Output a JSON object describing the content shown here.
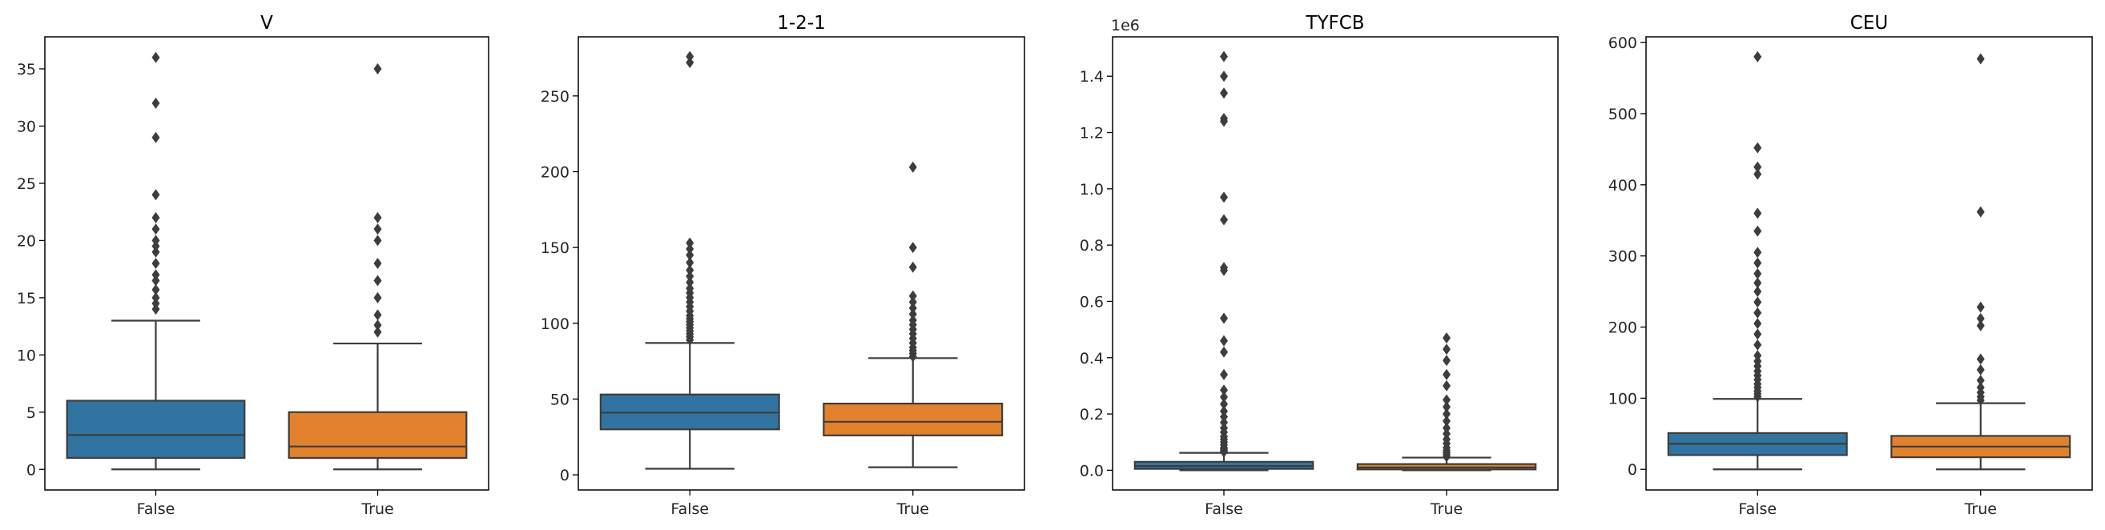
{
  "colors": {
    "false": "#3274a1",
    "true": "#e1812c",
    "line": "#3d3d3d"
  },
  "chart_data": [
    {
      "type": "box",
      "title": "V",
      "categories": [
        "False",
        "True"
      ],
      "ylim": [
        -1.8,
        37.8
      ],
      "yticks": [
        0,
        5,
        10,
        15,
        20,
        25,
        30,
        35
      ],
      "ytick_labels": [
        "0",
        "5",
        "10",
        "15",
        "20",
        "25",
        "30",
        "35"
      ],
      "offset_label": "",
      "boxes": [
        {
          "min": 0,
          "q1": 1,
          "median": 3,
          "q3": 6,
          "max": 13,
          "outliers": [
            14,
            14.5,
            15,
            15.7,
            16.5,
            17,
            18,
            19,
            19.5,
            20,
            21,
            22,
            24,
            29,
            32,
            36
          ]
        },
        {
          "min": 0,
          "q1": 1,
          "median": 2,
          "q3": 5,
          "max": 11,
          "outliers": [
            12,
            12.6,
            13.5,
            15,
            16.5,
            18,
            20,
            21,
            22,
            35
          ]
        }
      ]
    },
    {
      "type": "box",
      "title": "1-2-1",
      "categories": [
        "False",
        "True"
      ],
      "ylim": [
        -10,
        289
      ],
      "yticks": [
        0,
        50,
        100,
        150,
        200,
        250
      ],
      "ytick_labels": [
        "0",
        "50",
        "100",
        "150",
        "200",
        "250"
      ],
      "offset_label": "",
      "boxes": [
        {
          "min": 4,
          "q1": 30,
          "median": 41,
          "q3": 53,
          "max": 87,
          "outliers": [
            89,
            91,
            93,
            95,
            97,
            99,
            101,
            103,
            105,
            108,
            111,
            114,
            117,
            120,
            123,
            127,
            131,
            135,
            140,
            145,
            149,
            153,
            272,
            276
          ]
        },
        {
          "min": 5,
          "q1": 26,
          "median": 35,
          "q3": 47,
          "max": 77,
          "outliers": [
            78,
            80,
            82,
            84,
            87,
            90,
            93,
            96,
            99,
            102,
            106,
            110,
            114,
            118,
            137,
            150,
            203
          ]
        }
      ]
    },
    {
      "type": "box",
      "title": "TYFCB",
      "categories": [
        "False",
        "True"
      ],
      "ylim": [
        -70000,
        1540000
      ],
      "yticks": [
        0,
        200000,
        400000,
        600000,
        800000,
        1000000,
        1200000,
        1400000
      ],
      "ytick_labels": [
        "0.0",
        "0.2",
        "0.4",
        "0.6",
        "0.8",
        "1.0",
        "1.2",
        "1.4"
      ],
      "offset_label": "1e6",
      "boxes": [
        {
          "min": 0,
          "q1": 5000,
          "median": 15000,
          "q3": 30000,
          "max": 62000,
          "outliers": [
            65000,
            70000,
            75000,
            80000,
            90000,
            100000,
            110000,
            120000,
            135000,
            150000,
            170000,
            190000,
            210000,
            235000,
            260000,
            285000,
            340000,
            420000,
            460000,
            540000,
            710000,
            720000,
            890000,
            970000,
            1240000,
            1250000,
            1340000,
            1400000,
            1470000
          ]
        },
        {
          "min": 0,
          "q1": 3000,
          "median": 10000,
          "q3": 22000,
          "max": 45000,
          "outliers": [
            48000,
            55000,
            62000,
            70000,
            80000,
            95000,
            110000,
            130000,
            150000,
            175000,
            200000,
            225000,
            250000,
            300000,
            340000,
            390000,
            430000,
            470000
          ]
        }
      ]
    },
    {
      "type": "box",
      "title": "CEU",
      "categories": [
        "False",
        "True"
      ],
      "ylim": [
        -29,
        608
      ],
      "yticks": [
        0,
        100,
        200,
        300,
        400,
        500,
        600
      ],
      "ytick_labels": [
        "0",
        "100",
        "200",
        "300",
        "400",
        "500",
        "600"
      ],
      "offset_label": "",
      "boxes": [
        {
          "min": 0,
          "q1": 20,
          "median": 36,
          "q3": 51,
          "max": 99,
          "outliers": [
            102,
            106,
            110,
            115,
            120,
            126,
            132,
            138,
            145,
            152,
            160,
            175,
            190,
            205,
            220,
            235,
            250,
            262,
            275,
            290,
            305,
            335,
            360,
            415,
            425,
            452,
            580
          ]
        },
        {
          "min": 0,
          "q1": 17,
          "median": 32,
          "q3": 47,
          "max": 93,
          "outliers": [
            97,
            102,
            108,
            115,
            125,
            140,
            155,
            202,
            212,
            228,
            362,
            577
          ]
        }
      ]
    }
  ]
}
